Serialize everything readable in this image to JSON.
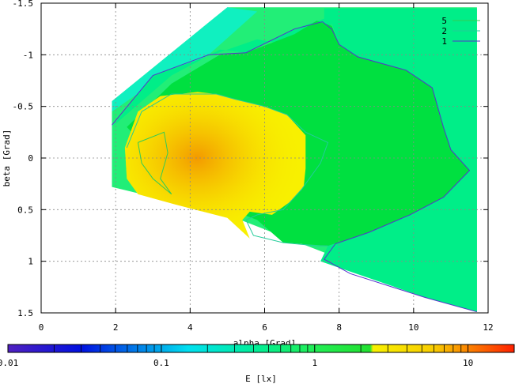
{
  "chart_data": {
    "type": "heatmap",
    "xlabel": "alpha [Grad]",
    "ylabel": "beta [Grad]",
    "xlim": [
      0,
      12
    ],
    "ylim": [
      -1.5,
      1.5
    ],
    "y_axis_inverted": true,
    "grid": true,
    "x_ticks": [
      {
        "value": 0,
        "label": "0"
      },
      {
        "value": 2,
        "label": "2"
      },
      {
        "value": 4,
        "label": "4"
      },
      {
        "value": 6,
        "label": "6"
      },
      {
        "value": 8,
        "label": "8"
      },
      {
        "value": 10,
        "label": "10"
      },
      {
        "value": 12,
        "label": "12"
      }
    ],
    "y_ticks": [
      {
        "value": -1.5,
        "label": "-1.5"
      },
      {
        "value": -1,
        "label": "-1"
      },
      {
        "value": -0.5,
        "label": "-0.5"
      },
      {
        "value": 0,
        "label": "0"
      },
      {
        "value": 0.5,
        "label": "0.5"
      },
      {
        "value": 1,
        "label": "1"
      },
      {
        "value": 1.5,
        "label": "1.5"
      }
    ],
    "legend": {
      "placement": "top-right",
      "entries": [
        {
          "label": "5",
          "color": "#33cc55"
        },
        {
          "label": "2",
          "color": "#22cc99"
        },
        {
          "label": "1",
          "color": "#5533cc"
        }
      ]
    },
    "colorbar": {
      "label": "E [lx]",
      "scale": "log",
      "range": [
        0.01,
        20
      ],
      "ticks": [
        {
          "value": 0.01,
          "label": "0.01"
        },
        {
          "value": 0.1,
          "label": "0.1"
        },
        {
          "value": 1,
          "label": "1"
        },
        {
          "value": 10,
          "label": "10"
        }
      ],
      "colors": [
        {
          "value": 0.01,
          "color": "#5020c0"
        },
        {
          "value": 0.03,
          "color": "#0010e0"
        },
        {
          "value": 0.15,
          "color": "#00e0f0"
        },
        {
          "value": 0.4,
          "color": "#00ee99"
        },
        {
          "value": 1.0,
          "color": "#22ee55"
        },
        {
          "value": 2.3,
          "color": "#22e030"
        },
        {
          "value": 2.4,
          "color": "#f8f000"
        },
        {
          "value": 6,
          "color": "#f8cc00"
        },
        {
          "value": 20,
          "color": "#ff2000"
        }
      ]
    },
    "regions": [
      {
        "name": "domain",
        "color": "#22ee77",
        "points": [
          [
            1.9,
            -0.55
          ],
          [
            5.0,
            -1.46
          ],
          [
            11.7,
            -1.46
          ],
          [
            11.7,
            1.49
          ],
          [
            5.0,
            0.55
          ],
          [
            1.9,
            0.28
          ]
        ]
      },
      {
        "name": "upper-cyan",
        "color": "#10f0c0",
        "points": [
          [
            1.9,
            -0.55
          ],
          [
            5.0,
            -1.46
          ],
          [
            5.8,
            -1.42
          ],
          [
            4.5,
            -1.0
          ],
          [
            2.5,
            -0.6
          ],
          [
            1.9,
            -0.45
          ]
        ]
      },
      {
        "name": "below-1-area",
        "color": "#00ee88",
        "points": [
          [
            1.9,
            -0.3
          ],
          [
            3.5,
            -0.8
          ],
          [
            4.8,
            -1.05
          ],
          [
            5.5,
            -1.02
          ],
          [
            6.8,
            -1.25
          ],
          [
            7.6,
            -1.35
          ],
          [
            7.6,
            -1.45
          ],
          [
            11.7,
            -1.45
          ],
          [
            11.7,
            1.49
          ],
          [
            10.3,
            1.35
          ],
          [
            8.3,
            1.1
          ],
          [
            7.5,
            1.0
          ],
          [
            7.7,
            0.85
          ],
          [
            8.8,
            0.72
          ],
          [
            9.9,
            0.55
          ],
          [
            10.8,
            0.38
          ],
          [
            11.5,
            0.12
          ],
          [
            11.0,
            -0.08
          ],
          [
            10.8,
            -0.3
          ],
          [
            10.5,
            -0.68
          ],
          [
            9.8,
            -0.85
          ],
          [
            8.5,
            -0.98
          ],
          [
            8.0,
            -1.1
          ],
          [
            7.8,
            -1.3
          ],
          [
            7.3,
            -1.05
          ],
          [
            5.8,
            -1.15
          ],
          [
            3.0,
            -0.8
          ],
          [
            1.9,
            -0.3
          ]
        ]
      },
      {
        "name": "above-2-area",
        "color": "#00e040",
        "points": [
          [
            7.4,
            -1.33
          ],
          [
            7.8,
            -1.28
          ],
          [
            8.0,
            -1.1
          ],
          [
            8.5,
            -0.98
          ],
          [
            9.8,
            -0.85
          ],
          [
            10.5,
            -0.68
          ],
          [
            10.8,
            -0.3
          ],
          [
            11.0,
            -0.08
          ],
          [
            11.5,
            0.12
          ],
          [
            10.8,
            0.38
          ],
          [
            9.9,
            0.55
          ],
          [
            8.8,
            0.72
          ],
          [
            7.7,
            0.85
          ],
          [
            6.5,
            0.82
          ],
          [
            5.8,
            0.6
          ],
          [
            4.0,
            0.35
          ],
          [
            2.3,
            -0.3
          ],
          [
            3.5,
            -0.72
          ],
          [
            4.8,
            -1.0
          ],
          [
            5.5,
            -1.02
          ],
          [
            6.8,
            -1.2
          ]
        ]
      },
      {
        "name": "yellow-area",
        "color": "#f8f000",
        "points": [
          [
            2.25,
            -0.1
          ],
          [
            2.6,
            -0.45
          ],
          [
            3.2,
            -0.6
          ],
          [
            4.2,
            -0.64
          ],
          [
            4.7,
            -0.62
          ],
          [
            5.2,
            -0.57
          ],
          [
            6.0,
            -0.5
          ],
          [
            6.6,
            -0.42
          ],
          [
            7.1,
            -0.22
          ],
          [
            7.1,
            0.1
          ],
          [
            7.05,
            0.28
          ],
          [
            6.7,
            0.42
          ],
          [
            6.2,
            0.55
          ],
          [
            5.6,
            0.52
          ],
          [
            5.4,
            0.6
          ],
          [
            5.6,
            0.78
          ],
          [
            5.0,
            0.58
          ],
          [
            3.6,
            0.45
          ],
          [
            2.6,
            0.35
          ],
          [
            2.3,
            0.2
          ]
        ]
      }
    ],
    "contours": [
      {
        "level": "1",
        "color": "#5533cc",
        "points": [
          [
            1.9,
            -0.32
          ],
          [
            3.0,
            -0.8
          ],
          [
            4.5,
            -1.0
          ],
          [
            5.5,
            -1.02
          ],
          [
            6.8,
            -1.25
          ],
          [
            7.55,
            -1.32
          ],
          [
            7.8,
            -1.25
          ],
          [
            8.0,
            -1.1
          ],
          [
            8.5,
            -0.98
          ],
          [
            9.8,
            -0.85
          ],
          [
            10.5,
            -0.68
          ],
          [
            10.8,
            -0.3
          ],
          [
            11.0,
            -0.08
          ],
          [
            11.5,
            0.12
          ],
          [
            10.8,
            0.38
          ],
          [
            9.9,
            0.55
          ],
          [
            8.8,
            0.72
          ],
          [
            7.9,
            0.83
          ],
          [
            7.6,
            0.98
          ],
          [
            8.3,
            1.12
          ],
          [
            10.3,
            1.35
          ],
          [
            11.7,
            1.49
          ]
        ]
      },
      {
        "level": "2",
        "color": "#22cc99",
        "points": [
          [
            2.3,
            -0.1
          ],
          [
            2.7,
            -0.45
          ],
          [
            3.5,
            -0.62
          ],
          [
            4.7,
            -0.62
          ],
          [
            5.2,
            -0.57
          ],
          [
            6.0,
            -0.5
          ],
          [
            6.6,
            -0.42
          ],
          [
            7.1,
            -0.25
          ],
          [
            7.7,
            -0.15
          ],
          [
            7.5,
            0.05
          ],
          [
            7.0,
            0.3
          ],
          [
            6.5,
            0.5
          ],
          [
            5.8,
            0.55
          ],
          [
            5.5,
            0.6
          ],
          [
            5.7,
            0.75
          ],
          [
            6.5,
            0.82
          ],
          [
            7.4,
            0.85
          ],
          [
            7.7,
            0.85
          ]
        ]
      },
      {
        "level": "5",
        "color": "#33cc55",
        "points": [
          [
            2.6,
            -0.15
          ],
          [
            3.3,
            -0.25
          ],
          [
            3.4,
            -0.05
          ],
          [
            3.2,
            0.2
          ],
          [
            3.5,
            0.35
          ],
          [
            3.0,
            0.2
          ],
          [
            2.7,
            0.05
          ],
          [
            2.6,
            -0.15
          ]
        ]
      }
    ]
  }
}
